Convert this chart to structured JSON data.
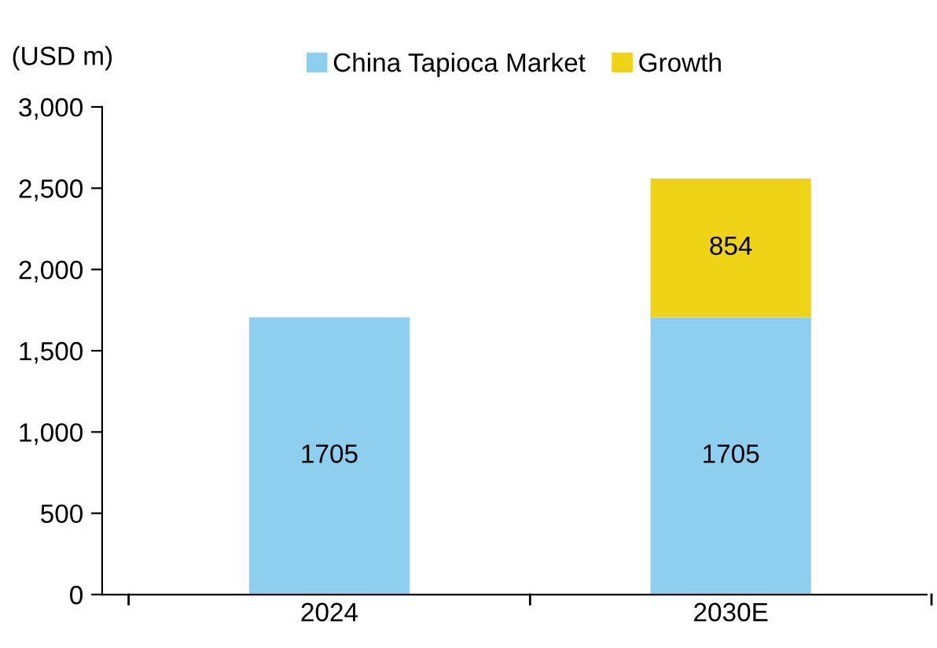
{
  "chart_data": {
    "type": "bar",
    "stacked": true,
    "ylabel": "(USD m)",
    "categories": [
      "2024",
      "2030E"
    ],
    "series": [
      {
        "name": "China Tapioca Market",
        "color": "#8ecff0",
        "values": [
          1705,
          1705
        ]
      },
      {
        "name": "Growth",
        "color": "#efd317",
        "values": [
          null,
          854
        ]
      }
    ],
    "ylim": [
      0,
      3000
    ],
    "yticks": [
      0,
      500,
      {
        "value": 1000,
        "label": "1,000"
      },
      {
        "value": 1500,
        "label": "1,500"
      },
      {
        "value": 2000,
        "label": "2,000"
      },
      {
        "value": 2500,
        "label": "2,500"
      },
      {
        "value": 3000,
        "label": "3,000"
      }
    ],
    "data_labels": true,
    "grid": false,
    "legend": "top"
  }
}
